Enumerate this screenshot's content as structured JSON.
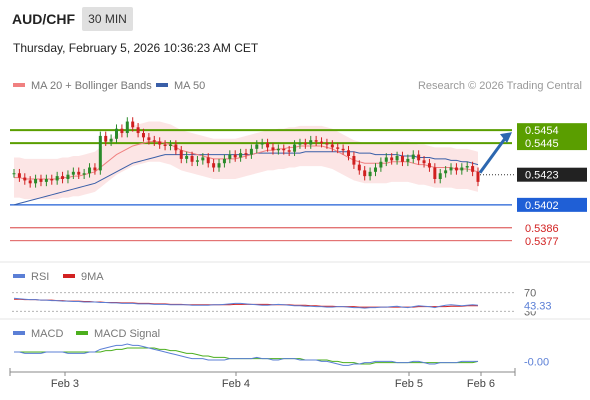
{
  "header": {
    "symbol": "AUD/CHF",
    "timeframe": "30 MIN",
    "datetime": "Thursday, February 5, 2026 10:36:23 AM CET"
  },
  "legend": {
    "ma20": "MA 20 + Bollinger Bands",
    "ma50": "MA 50",
    "copyright": "Research © 2026 Trading Central"
  },
  "colors": {
    "resistance": "#5a9e00",
    "support": "#1f5fd6",
    "support_minor": "#d22222",
    "candle_up": "#2a8a2a",
    "candle_down": "#d02020",
    "ma20": "#f08080",
    "ma50": "#3a5fa8",
    "bollinger_fill": "#fbdcdc",
    "arrow": "#2c67b0"
  },
  "chart_data": [
    {
      "type": "candlestick",
      "x_labels": [
        "Feb 3",
        "Feb 4",
        "Feb 5",
        "Feb 6"
      ],
      "ylim": [
        0.5365,
        0.5475
      ],
      "levels": {
        "resistance": [
          0.5454,
          0.5445
        ],
        "current": 0.5423,
        "support": 0.5402,
        "support_minor": [
          0.5386,
          0.5377
        ]
      },
      "level_labels": {
        "r1": "0.5454",
        "r2": "0.5445",
        "current": "0.5423",
        "s1": "0.5402",
        "s2": "0.5386",
        "s3": "0.5377"
      },
      "closes": [
        0.5424,
        0.5421,
        0.5419,
        0.5417,
        0.542,
        0.5418,
        0.542,
        0.5419,
        0.5422,
        0.542,
        0.5423,
        0.5425,
        0.5423,
        0.5424,
        0.5428,
        0.5426,
        0.545,
        0.5446,
        0.5448,
        0.5455,
        0.5452,
        0.546,
        0.5456,
        0.5452,
        0.5449,
        0.5447,
        0.5446,
        0.5444,
        0.5443,
        0.5444,
        0.544,
        0.5434,
        0.5436,
        0.5432,
        0.5433,
        0.5435,
        0.5431,
        0.5428,
        0.5431,
        0.5434,
        0.5437,
        0.5435,
        0.5438,
        0.5437,
        0.5441,
        0.5444,
        0.5445,
        0.5442,
        0.544,
        0.5441,
        0.544,
        0.5439,
        0.5444,
        0.5445,
        0.5444,
        0.5447,
        0.5446,
        0.5445,
        0.5444,
        0.5442,
        0.5441,
        0.544,
        0.5436,
        0.543,
        0.5426,
        0.5422,
        0.5425,
        0.5428,
        0.5432,
        0.5435,
        0.5433,
        0.5436,
        0.5432,
        0.5434,
        0.5437,
        0.5433,
        0.5431,
        0.5428,
        0.542,
        0.5424,
        0.5426,
        0.5428,
        0.5426,
        0.5428,
        0.5429,
        0.5425,
        0.5418
      ],
      "ma20": [
        0.5421,
        0.5421,
        0.542,
        0.542,
        0.542,
        0.542,
        0.542,
        0.542,
        0.542,
        0.5421,
        0.5421,
        0.5422,
        0.5422,
        0.5423,
        0.5424,
        0.5425,
        0.5428,
        0.5431,
        0.5434,
        0.5437,
        0.5439,
        0.5441,
        0.5443,
        0.5444,
        0.5445,
        0.5446,
        0.5446,
        0.5446,
        0.5445,
        0.5444,
        0.5442,
        0.544,
        0.5439,
        0.5438,
        0.5437,
        0.5436,
        0.5435,
        0.5434,
        0.5434,
        0.5434,
        0.5434,
        0.5434,
        0.5435,
        0.5436,
        0.5437,
        0.5438,
        0.5439,
        0.544,
        0.544,
        0.5441,
        0.5441,
        0.5442,
        0.5442,
        0.5443,
        0.5443,
        0.5443,
        0.5443,
        0.5443,
        0.5442,
        0.5441,
        0.5439,
        0.5437,
        0.5435,
        0.5433,
        0.5432,
        0.5431,
        0.5431,
        0.5431,
        0.5431,
        0.5431,
        0.5432,
        0.5432,
        0.5432,
        0.5432,
        0.5431,
        0.543,
        0.543,
        0.5429,
        0.5428,
        0.5428,
        0.5428,
        0.5428,
        0.5427,
        0.5427,
        0.5427,
        0.5426,
        0.5425
      ],
      "ma50": [
        0.5402,
        0.5403,
        0.5404,
        0.5405,
        0.5406,
        0.5407,
        0.5408,
        0.5409,
        0.541,
        0.5411,
        0.5412,
        0.5413,
        0.5414,
        0.5415,
        0.5416,
        0.5417,
        0.5419,
        0.5421,
        0.5423,
        0.5425,
        0.5427,
        0.5429,
        0.5431,
        0.5432,
        0.5433,
        0.5434,
        0.5435,
        0.5436,
        0.5437,
        0.5437,
        0.5437,
        0.5437,
        0.5437,
        0.5437,
        0.5437,
        0.5437,
        0.5437,
        0.5437,
        0.5437,
        0.5437,
        0.5437,
        0.5437,
        0.5437,
        0.5437,
        0.5437,
        0.5438,
        0.5438,
        0.5438,
        0.5438,
        0.5438,
        0.5438,
        0.5438,
        0.5438,
        0.5438,
        0.5439,
        0.5439,
        0.5439,
        0.5439,
        0.5439,
        0.5439,
        0.5439,
        0.5439,
        0.5439,
        0.5439,
        0.5438,
        0.5438,
        0.5438,
        0.5437,
        0.5437,
        0.5437,
        0.5437,
        0.5437,
        0.5436,
        0.5436,
        0.5436,
        0.5435,
        0.5435,
        0.5435,
        0.5434,
        0.5434,
        0.5434,
        0.5433,
        0.5433,
        0.5432,
        0.5432,
        0.5431,
        0.543
      ],
      "bollinger_width": 0.0014
    },
    {
      "type": "line",
      "name": "RSI",
      "series_labels": [
        "RSI",
        "9MA"
      ],
      "levels": [
        70,
        30
      ],
      "level_labels": [
        "70",
        "30"
      ],
      "ylim": [
        20,
        80
      ],
      "last_value_label": "43.33",
      "rsi": [
        58,
        57,
        56,
        55,
        55,
        54,
        54,
        53,
        53,
        52,
        52,
        51,
        51,
        50,
        50,
        50,
        49,
        49,
        48,
        48,
        47,
        47,
        47,
        46,
        46,
        46,
        45,
        45,
        45,
        44,
        44,
        44,
        44,
        43,
        43,
        43,
        43,
        44,
        44,
        45,
        46,
        47,
        47,
        46,
        45,
        44,
        43,
        43,
        44,
        45,
        44,
        43,
        42,
        42,
        41,
        41,
        40,
        40,
        39,
        39,
        40,
        40,
        39,
        38,
        38,
        37,
        38,
        38,
        39,
        39,
        40,
        41,
        39,
        38,
        40,
        42,
        41,
        40,
        38,
        41,
        43,
        44,
        43,
        42,
        43,
        44,
        43
      ],
      "ma9": [
        56,
        56,
        55,
        55,
        55,
        54,
        54,
        54,
        53,
        53,
        52,
        52,
        52,
        51,
        51,
        50,
        50,
        49,
        49,
        49,
        48,
        48,
        48,
        47,
        47,
        47,
        46,
        46,
        46,
        45,
        45,
        45,
        44,
        44,
        44,
        44,
        44,
        44,
        44,
        44,
        44,
        45,
        45,
        45,
        45,
        45,
        45,
        45,
        44,
        44,
        44,
        44,
        43,
        43,
        43,
        42,
        42,
        41,
        41,
        41,
        40,
        40,
        40,
        40,
        39,
        39,
        39,
        39,
        39,
        39,
        39,
        39,
        39,
        39,
        39,
        40,
        40,
        40,
        40,
        40,
        40,
        41,
        41,
        41,
        42,
        42,
        42
      ]
    },
    {
      "type": "line",
      "name": "MACD",
      "series_labels": [
        "MACD",
        "MACD Signal"
      ],
      "ylim": [
        -0.0012,
        0.0012
      ],
      "last_value_label": "-0.00",
      "macd": [
        0.0003,
        0.0003,
        0.0002,
        0.0002,
        0.0002,
        0.0002,
        0.0003,
        0.0003,
        0.0003,
        0.0003,
        0.0002,
        0.0002,
        0.0002,
        0.0002,
        0.0003,
        0.0003,
        0.0005,
        0.0006,
        0.0007,
        0.0008,
        0.0008,
        0.0009,
        0.0008,
        0.0008,
        0.0007,
        0.0006,
        0.0005,
        0.0004,
        0.0003,
        0.0002,
        0.0001,
        0.0,
        -0.0001,
        -0.0002,
        -0.0002,
        -0.0002,
        -0.0003,
        -0.0003,
        -0.0003,
        -0.0003,
        -0.0002,
        -0.0002,
        -0.0002,
        -0.0002,
        -0.0002,
        -0.0001,
        -0.0002,
        -0.0002,
        -0.0003,
        -0.0003,
        -0.0002,
        -0.0002,
        -0.0002,
        -0.0003,
        -0.0003,
        -0.0003,
        -0.0003,
        -0.0004,
        -0.0004,
        -0.0005,
        -0.0006,
        -0.0007,
        -0.0007,
        -0.0006,
        -0.0006,
        -0.0005,
        -0.0005,
        -0.0004,
        -0.0004,
        -0.0004,
        -0.0004,
        -0.0005,
        -0.0005,
        -0.0005,
        -0.0004,
        -0.0004,
        -0.0005,
        -0.0006,
        -0.0006,
        -0.0005,
        -0.0005,
        -0.0005,
        -0.0005,
        -0.0004,
        -0.0004,
        -0.0004,
        -0.0004
      ],
      "signal": [
        0.0003,
        0.0003,
        0.0003,
        0.0003,
        0.0003,
        0.0003,
        0.0003,
        0.0003,
        0.0003,
        0.0003,
        0.0003,
        0.0003,
        0.0003,
        0.0003,
        0.0003,
        0.0003,
        0.0003,
        0.0004,
        0.0004,
        0.0005,
        0.0005,
        0.0006,
        0.0006,
        0.0006,
        0.0006,
        0.0006,
        0.0006,
        0.0005,
        0.0005,
        0.0004,
        0.0004,
        0.0003,
        0.0002,
        0.0002,
        0.0001,
        0.0,
        0.0,
        -0.0001,
        -0.0001,
        -0.0001,
        -0.0002,
        -0.0002,
        -0.0002,
        -0.0002,
        -0.0002,
        -0.0002,
        -0.0002,
        -0.0002,
        -0.0002,
        -0.0002,
        -0.0002,
        -0.0002,
        -0.0002,
        -0.0002,
        -0.0003,
        -0.0003,
        -0.0003,
        -0.0003,
        -0.0003,
        -0.0004,
        -0.0004,
        -0.0005,
        -0.0005,
        -0.0005,
        -0.0006,
        -0.0006,
        -0.0006,
        -0.0005,
        -0.0005,
        -0.0005,
        -0.0005,
        -0.0005,
        -0.0005,
        -0.0005,
        -0.0005,
        -0.0005,
        -0.0005,
        -0.0005,
        -0.0005,
        -0.0005,
        -0.0005,
        -0.0005,
        -0.0005,
        -0.0005,
        -0.0005,
        -0.0005,
        -0.0004
      ]
    }
  ]
}
